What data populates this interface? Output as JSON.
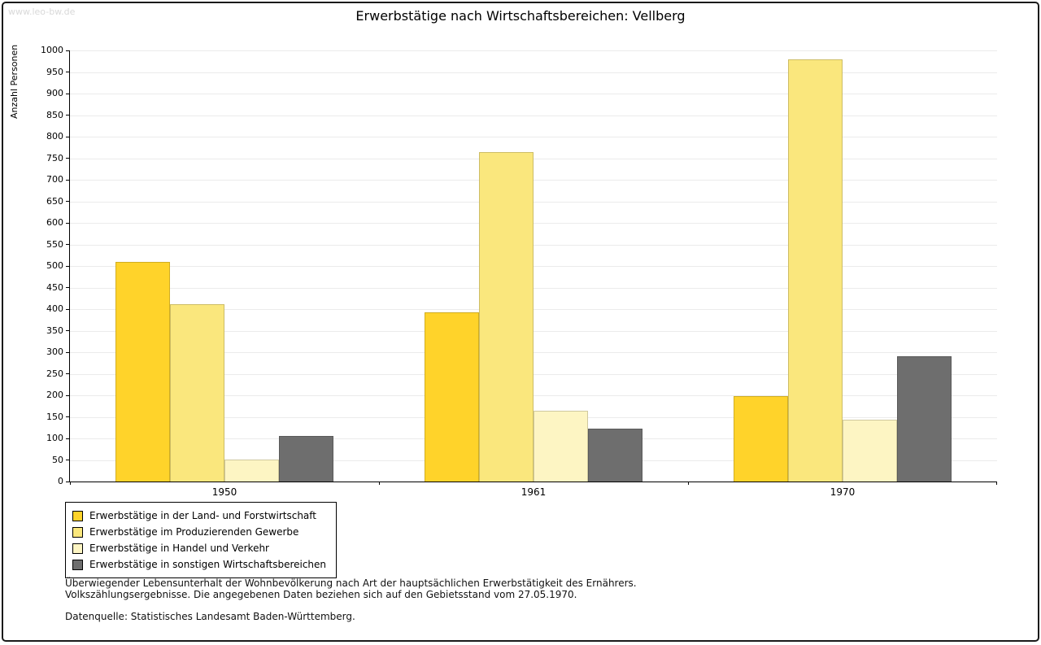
{
  "watermark": "www.leo-bw.de",
  "title": "Erwerbstätige nach Wirtschaftsbereichen: Vellberg",
  "chart_data": {
    "type": "bar",
    "title": "Erwerbstätige nach Wirtschaftsbereichen: Vellberg",
    "xlabel": "",
    "ylabel": "Anzahl Personen",
    "ylim": [
      0,
      1000
    ],
    "ytick_step": 50,
    "grid": true,
    "legend_position": "bottom-left",
    "categories": [
      "1950",
      "1961",
      "1970"
    ],
    "series": [
      {
        "name": "Erwerbstätige in der Land- und Forstwirtschaft",
        "color": "#FFD32A",
        "values": [
          510,
          392,
          198
        ]
      },
      {
        "name": "Erwerbstätige im Produzierenden Gewerbe",
        "color": "#FAE77D",
        "values": [
          411,
          765,
          980
        ]
      },
      {
        "name": "Erwerbstätige in Handel und Verkehr",
        "color": "#FDF5C3",
        "values": [
          51,
          165,
          143
        ]
      },
      {
        "name": "Erwerbstätige in sonstigen Wirtschaftsbereichen",
        "color": "#6E6E6E",
        "values": [
          106,
          123,
          290
        ]
      }
    ]
  },
  "footnotes": {
    "line1": "Überwiegender Lebensunterhalt der Wohnbevölkerung nach Art der hauptsächlichen Erwerbstätigkeit des Ernährers.",
    "line2": "Volkszählungsergebnisse. Die angegebenen Daten beziehen sich auf den Gebietsstand vom 27.05.1970.",
    "source": "Datenquelle: Statistisches Landesamt Baden-Württemberg."
  }
}
